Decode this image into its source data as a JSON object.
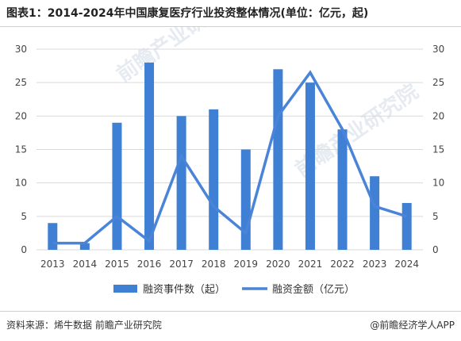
{
  "title": "图表1：2014-2024年中国康复医疗行业投资整体情况(单位：亿元，起)",
  "footer": {
    "source": "资料来源：烯牛数据 前瞻产业研究院",
    "brand": "@前瞻经济学人APP"
  },
  "watermark": "前瞻产业研究院",
  "chart_data": {
    "type": "bar",
    "categories": [
      "2013",
      "2014",
      "2015",
      "2016",
      "2017",
      "2018",
      "2019",
      "2020",
      "2021",
      "2022",
      "2023",
      "2024"
    ],
    "series": [
      {
        "name": "融资事件数（起）",
        "type": "bar",
        "color": "#3f7fd4",
        "values": [
          4,
          1,
          19,
          28,
          20,
          21,
          15,
          27,
          25,
          18,
          11,
          7
        ]
      },
      {
        "name": "融资金额（亿元）",
        "type": "line",
        "color": "#4a84d8",
        "values": [
          1,
          1,
          5,
          1.3,
          14,
          6.5,
          2.5,
          20,
          26.5,
          18,
          6.5,
          5
        ]
      }
    ],
    "y_left": {
      "min": 0,
      "max": 30,
      "ticks": [
        0,
        5,
        10,
        15,
        20,
        25,
        30
      ]
    },
    "y_right": {
      "min": 0,
      "max": 30,
      "ticks": [
        0,
        5,
        10,
        15,
        20,
        25,
        30
      ]
    },
    "grid": true,
    "legend_position": "bottom"
  }
}
